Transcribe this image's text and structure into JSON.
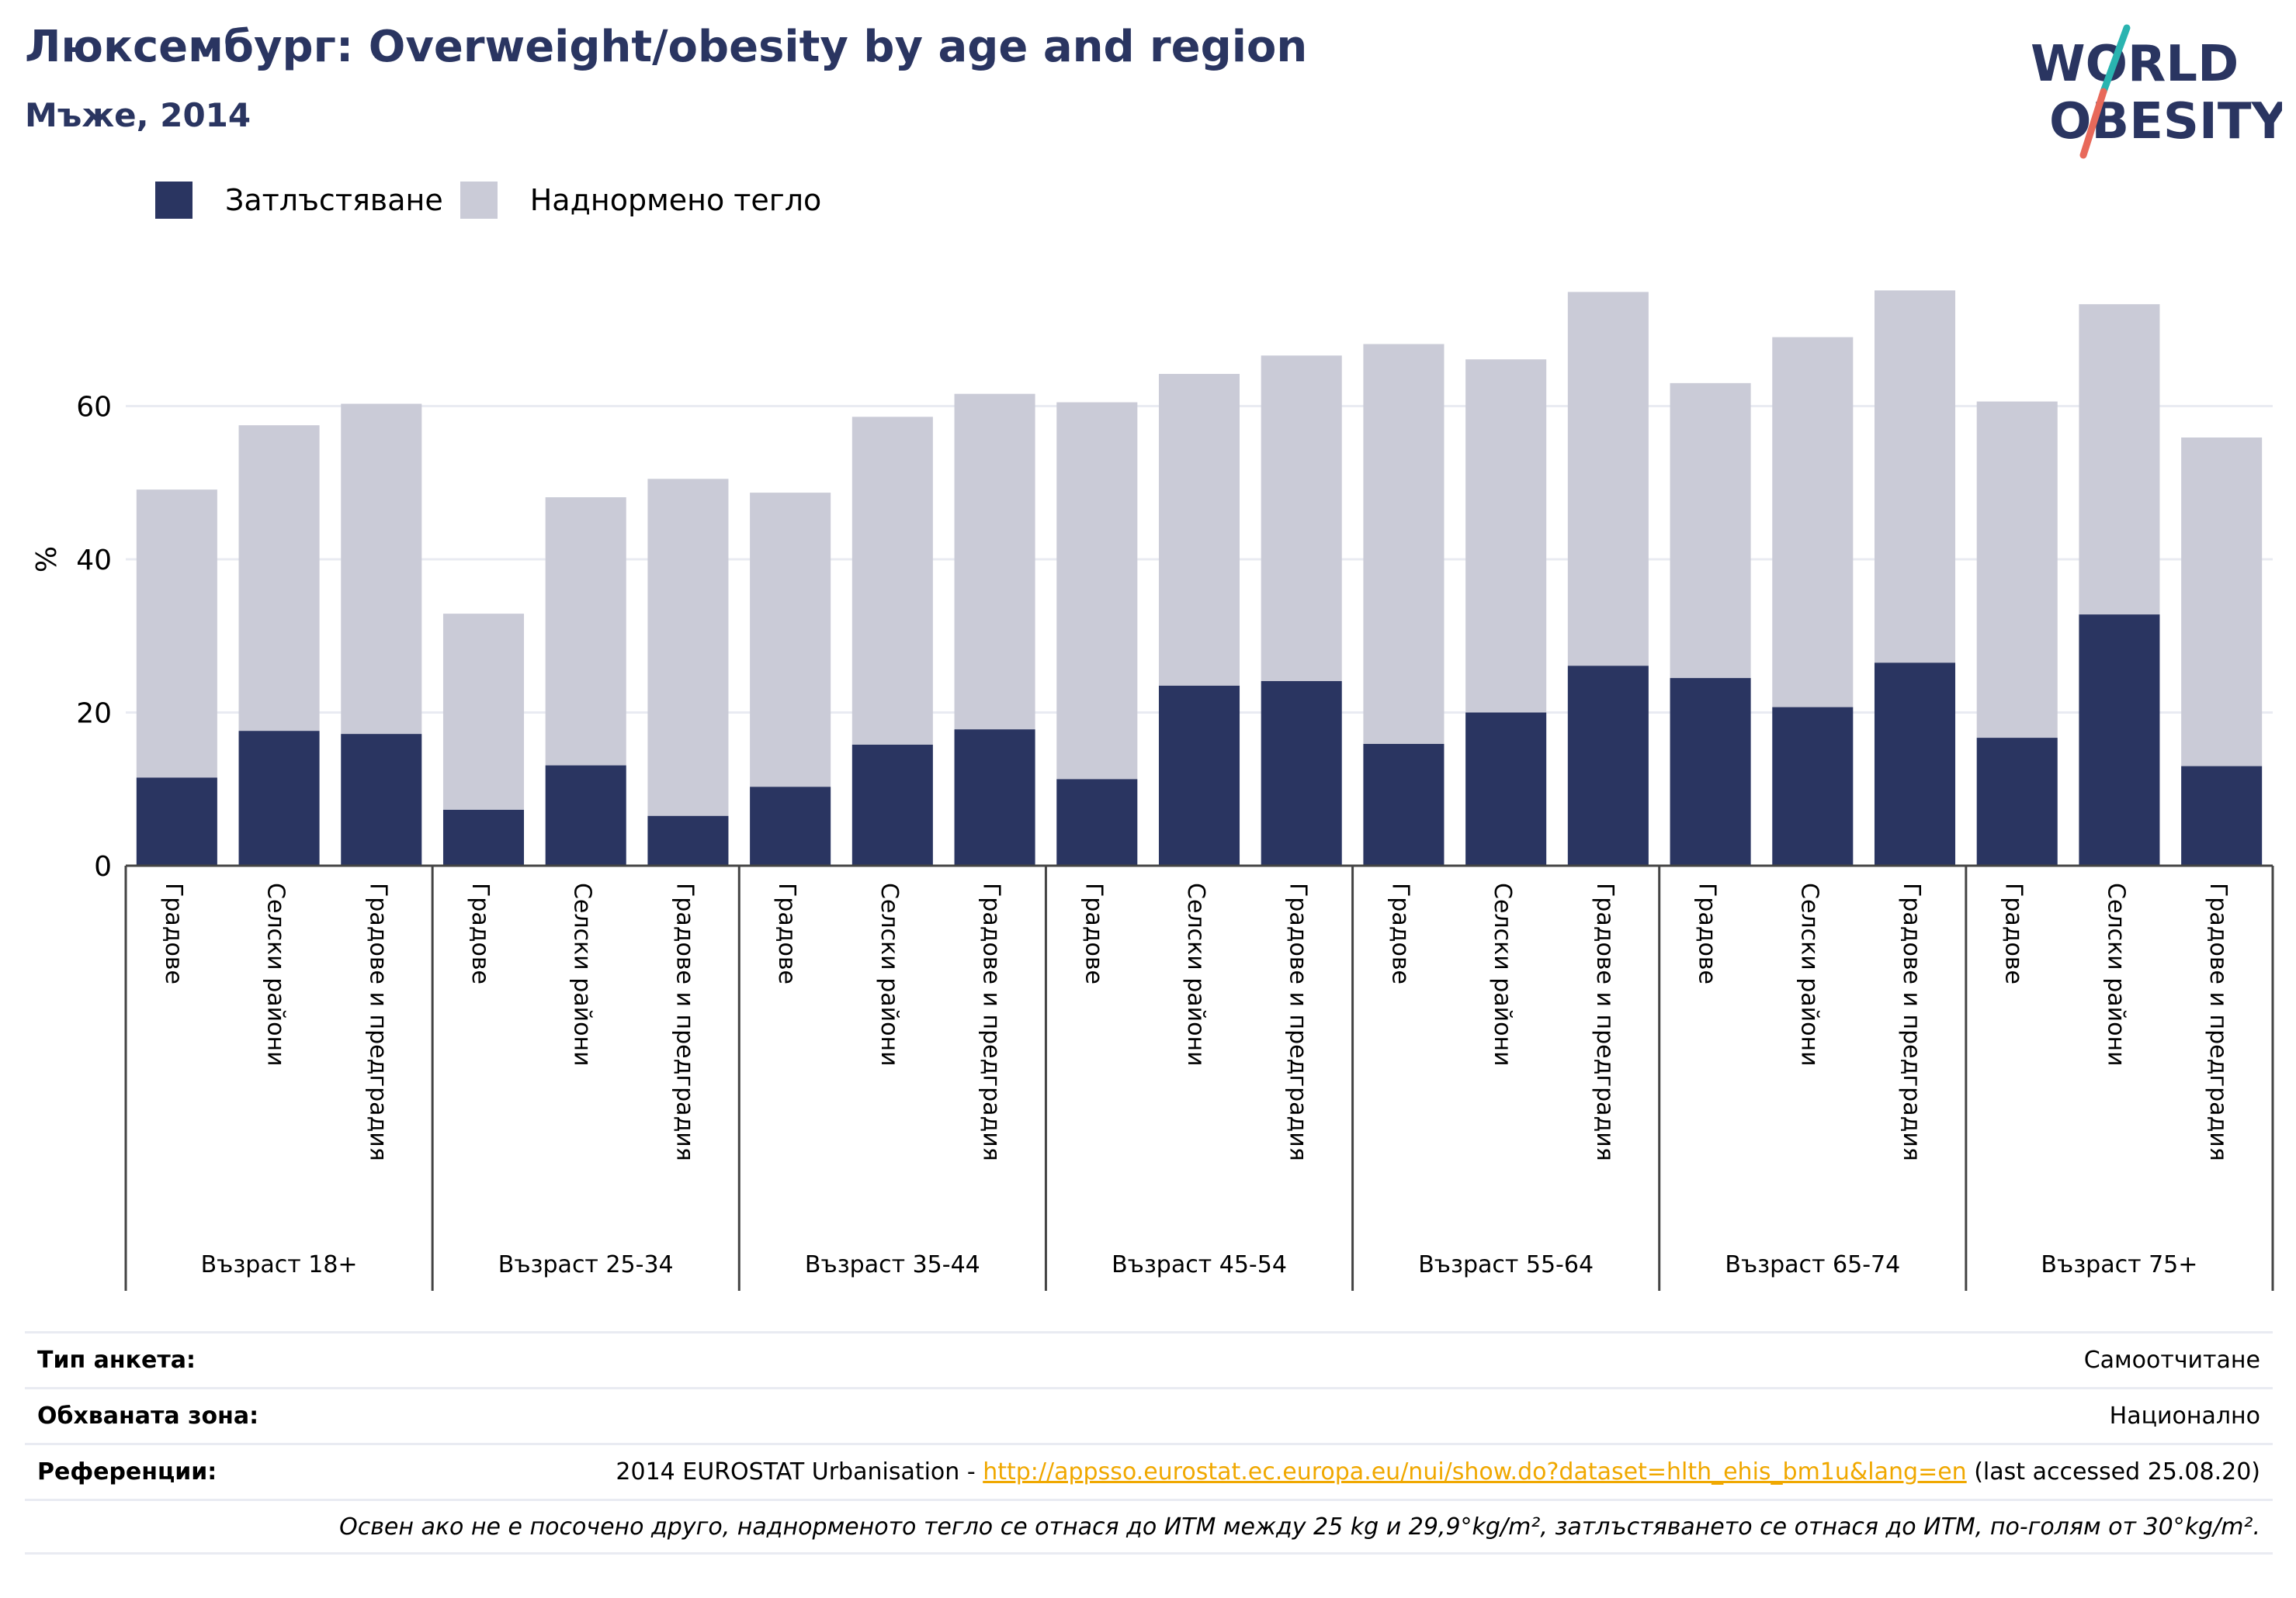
{
  "header": {
    "title": "Люксембург: Overweight/obesity by age and region",
    "subtitle": "Мъже, 2014",
    "logo_line1": "WORLD",
    "logo_line2": "OBESITY"
  },
  "legend": {
    "obesity_label": "Затлъстяване",
    "overweight_label": "Наднормено тегло"
  },
  "colors": {
    "obesity": "#2a3561",
    "overweight": "#cacbd7",
    "title": "#2a3561",
    "link": "#f0a800",
    "logo_accent_teal": "#2ab4b0",
    "logo_accent_coral": "#e8695a"
  },
  "chart_data": {
    "type": "bar",
    "stacked": true,
    "ylabel": "%",
    "ylim": [
      0,
      80
    ],
    "yticks": [
      0,
      20,
      40,
      60
    ],
    "grid": true,
    "legend_position": "top-left",
    "groups": [
      "Възраст 18+",
      "Възраст 25-34",
      "Възраст 35-44",
      "Възраст 45-54",
      "Възраст 55-64",
      "Възраст 65-74",
      "Възраст 75+"
    ],
    "subcategories": [
      "Градове",
      "Селски райони",
      "Градове и предградия"
    ],
    "series": [
      {
        "name": "Затлъстяване",
        "values": [
          11.5,
          17.6,
          17.2,
          7.3,
          13.1,
          6.5,
          10.3,
          15.8,
          17.8,
          11.3,
          23.5,
          24.1,
          15.9,
          20.0,
          26.1,
          24.5,
          20.7,
          26.5,
          16.7,
          32.8,
          13.0
        ]
      },
      {
        "name": "Наднормено тегло",
        "values": [
          37.6,
          39.9,
          43.1,
          25.6,
          35.0,
          44.0,
          38.4,
          42.8,
          43.8,
          49.2,
          40.7,
          42.5,
          52.2,
          46.1,
          48.8,
          38.5,
          48.3,
          48.6,
          43.9,
          40.5,
          42.9
        ]
      }
    ]
  },
  "info": {
    "survey_label": "Тип анкета:",
    "survey_value": "Самоотчитане",
    "area_label": "Обхваната зона:",
    "area_value": "Национално",
    "ref_label": "Референции:",
    "ref_prefix": "2014 EUROSTAT Urbanisation - ",
    "ref_link": "http://appsso.eurostat.ec.europa.eu/nui/show.do?dataset=hlth_ehis_bm1u&lang=en",
    "ref_suffix": " (last accessed 25.08.20)",
    "note": "Освен ако не е посочено друго, наднорменото тегло се отнася до ИТМ между 25 kg и 29,9°kg/m², затлъстяването се отнася до ИТМ, по-голям от 30°kg/m²."
  }
}
